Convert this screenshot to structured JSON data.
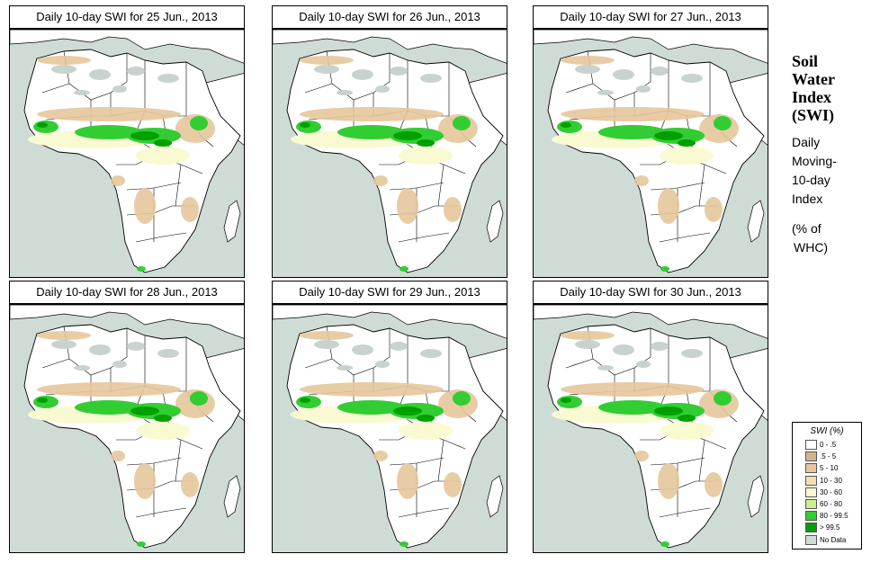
{
  "panels": [
    {
      "title": "Daily 10-day SWI for  25 Jun., 2013"
    },
    {
      "title": "Daily 10-day SWI for  26 Jun., 2013"
    },
    {
      "title": "Daily 10-day SWI for  27 Jun., 2013"
    },
    {
      "title": "Daily 10-day SWI for  28 Jun., 2013"
    },
    {
      "title": "Daily 10-day SWI for  29 Jun., 2013"
    },
    {
      "title": "Daily 10-day SWI for  30 Jun., 2013"
    }
  ],
  "side_title": {
    "line1": "Soil",
    "line2": "Water",
    "line3": "Index",
    "line4": "(SWI)",
    "sub1": "Daily",
    "sub2": "Moving-",
    "sub3": "10-day",
    "sub4": "Index",
    "units1": "(% of",
    "units2": "WHC)"
  },
  "legend": {
    "title": "SWI (%)",
    "classes": [
      {
        "label": "0 - .5",
        "color": "#ffffff"
      },
      {
        "label": ".5 - 5",
        "color": "#d2b48c"
      },
      {
        "label": "5 - 10",
        "color": "#e6c79c"
      },
      {
        "label": "10 - 30",
        "color": "#f2deb0"
      },
      {
        "label": "30 - 60",
        "color": "#fafad2"
      },
      {
        "label": "60 - 80",
        "color": "#c8f08c"
      },
      {
        "label": "80 - 99.5",
        "color": "#32cd32"
      },
      {
        "label": "> 99.5",
        "color": "#00a000"
      },
      {
        "label": "No Data",
        "color": "#cfdcd6"
      }
    ]
  },
  "colors": {
    "ocean": "#cfdcd6",
    "land": "#ffffff",
    "border": "#000000",
    "dry": "#e6c79c",
    "moist": "#fafad2",
    "wet": "#32cd32",
    "saturated": "#00a000",
    "nodata": "#c8d2ce"
  }
}
